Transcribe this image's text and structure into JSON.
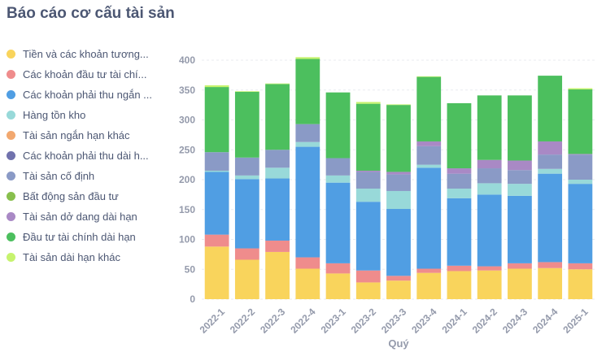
{
  "title": "Báo cáo cơ cấu tài sản",
  "chart_data": {
    "type": "bar",
    "stacked": true,
    "xlabel": "Quý",
    "ylabel": "",
    "ylim": [
      0,
      400
    ],
    "yticks": [
      0,
      50,
      100,
      150,
      200,
      250,
      300,
      350,
      400
    ],
    "grid": true,
    "legend_position": "left",
    "categories": [
      "2022-1",
      "2022-2",
      "2022-3",
      "2022-4",
      "2023-1",
      "2023-2",
      "2023-3",
      "2023-4",
      "2024-1",
      "2024-2",
      "2024-3",
      "2024-4",
      "2025-1"
    ],
    "series": [
      {
        "name": "Tiền và các khoản tương đương tiền",
        "display": "Tiền và các khoản tương...",
        "color": "#f9d45c",
        "values": [
          88,
          66,
          79,
          51,
          43,
          28,
          31,
          44,
          47,
          48,
          51,
          52,
          50
        ]
      },
      {
        "name": "Các khoản đầu tư tài chính ngắn hạn",
        "display": "Các khoản đầu tư tài chí...",
        "color": "#ef8c8c",
        "values": [
          20,
          19,
          19,
          19,
          17,
          20,
          8,
          7,
          9,
          7,
          9,
          10,
          10
        ]
      },
      {
        "name": "Các khoản phải thu ngắn hạn",
        "display": "Các khoản phải thu ngắn ...",
        "color": "#509ee3",
        "values": [
          105,
          116,
          104,
          185,
          135,
          115,
          112,
          169,
          113,
          120,
          113,
          148,
          133
        ]
      },
      {
        "name": "Hàng tồn kho",
        "display": "Hàng tồn kho",
        "color": "#98d9d9",
        "values": [
          2,
          6,
          18,
          8,
          12,
          22,
          30,
          5,
          16,
          19,
          20,
          8,
          7
        ]
      },
      {
        "name": "Tài sản ngắn hạn khác",
        "display": "Tài sản ngắn hạn khác",
        "color": "#f2a86f",
        "values": [
          0,
          0,
          0,
          0,
          0,
          0,
          0,
          0,
          0,
          0,
          0,
          0,
          0
        ]
      },
      {
        "name": "Các khoản phải thu dài hạn",
        "display": "Các khoản phải thu dài h...",
        "color": "#7172ad",
        "values": [
          0,
          0,
          0,
          0,
          0,
          0,
          0,
          0,
          0,
          0,
          0,
          0,
          0
        ]
      },
      {
        "name": "Tài sản cố định",
        "display": "Tài sản cố định",
        "color": "#8a9ac6",
        "values": [
          31,
          30,
          30,
          30,
          29,
          28,
          28,
          31,
          25,
          25,
          23,
          24,
          42
        ]
      },
      {
        "name": "Bất động sản đầu tư",
        "display": "Bất động sản đầu tư",
        "color": "#88bf4d",
        "values": [
          0,
          0,
          0,
          0,
          0,
          0,
          0,
          0,
          0,
          0,
          0,
          0,
          0
        ]
      },
      {
        "name": "Tài sản dở dang dài hạn",
        "display": "Tài sản dở dang dài hạn",
        "color": "#a989c5",
        "values": [
          0,
          0,
          0,
          0,
          0,
          2,
          4,
          8,
          9,
          14,
          16,
          22,
          1
        ]
      },
      {
        "name": "Đầu tư tài chính dài hạn",
        "display": "Đầu tư tài chính dài hạn",
        "color": "#4cbf5e",
        "values": [
          109,
          110,
          110,
          109,
          110,
          112,
          112,
          108,
          109,
          108,
          109,
          110,
          108
        ]
      },
      {
        "name": "Tài sản dài hạn khác",
        "display": "Tài sản dài hạn khác",
        "color": "#c6f36e",
        "values": [
          3,
          1,
          1,
          3,
          0,
          3,
          1,
          1,
          0,
          0,
          0,
          0,
          2
        ]
      }
    ]
  }
}
